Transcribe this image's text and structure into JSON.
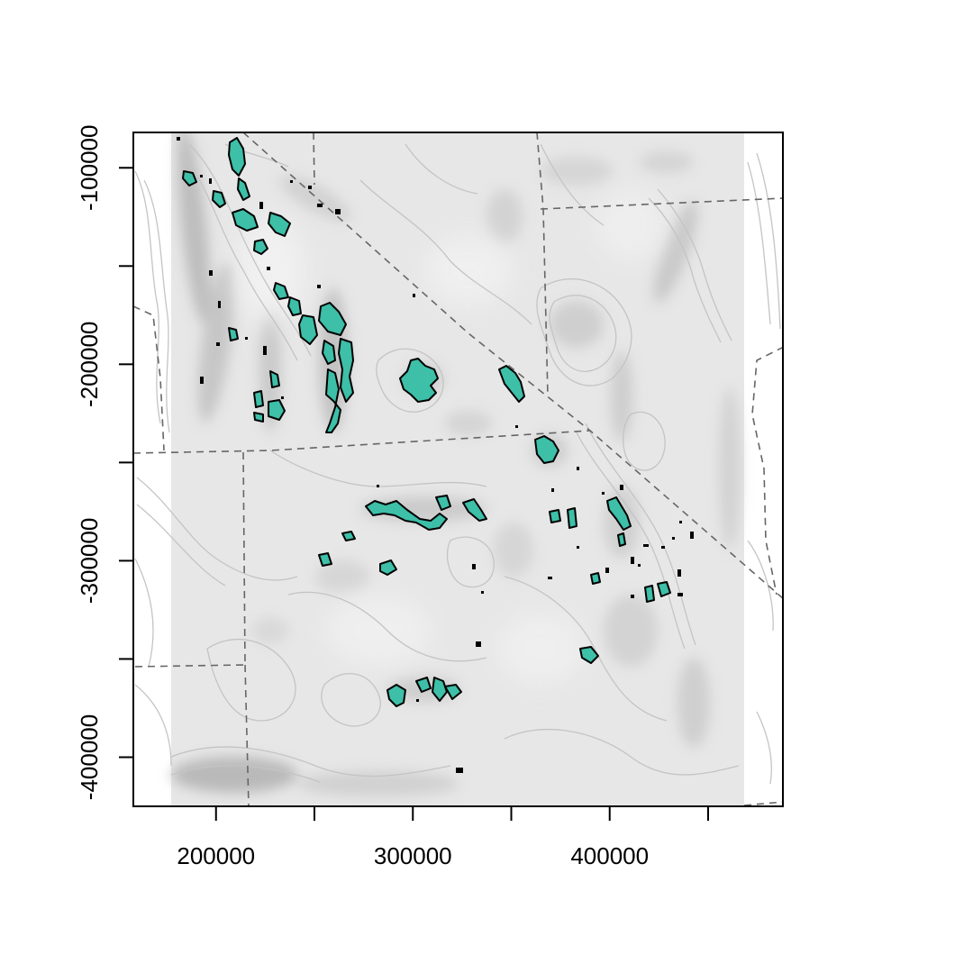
{
  "map": {
    "x_ticks": [
      {
        "value": 200000,
        "label": "200000"
      },
      {
        "value": 250000,
        "label": ""
      },
      {
        "value": 300000,
        "label": "300000"
      },
      {
        "value": 350000,
        "label": ""
      },
      {
        "value": 400000,
        "label": "400000"
      },
      {
        "value": 450000,
        "label": ""
      }
    ],
    "y_ticks": [
      {
        "value": -100000,
        "label": "-100000"
      },
      {
        "value": -150000,
        "label": ""
      },
      {
        "value": -200000,
        "label": "-200000"
      },
      {
        "value": -250000,
        "label": ""
      },
      {
        "value": -300000,
        "label": "-300000"
      },
      {
        "value": -350000,
        "label": ""
      },
      {
        "value": -400000,
        "label": "-400000"
      }
    ],
    "xlim": [
      158000,
      488000
    ],
    "ylim": [
      -425000,
      -82000
    ],
    "colors": {
      "habitat_fill": "#3dbfa8",
      "habitat_outline": "#000000",
      "boundary": "#666666",
      "contour": "#c2c2c2",
      "hillshade_base": "#e6e6e6"
    },
    "layers": [
      "hillshade",
      "contour-lines",
      "boundary-lines",
      "habitat-polygons"
    ]
  }
}
